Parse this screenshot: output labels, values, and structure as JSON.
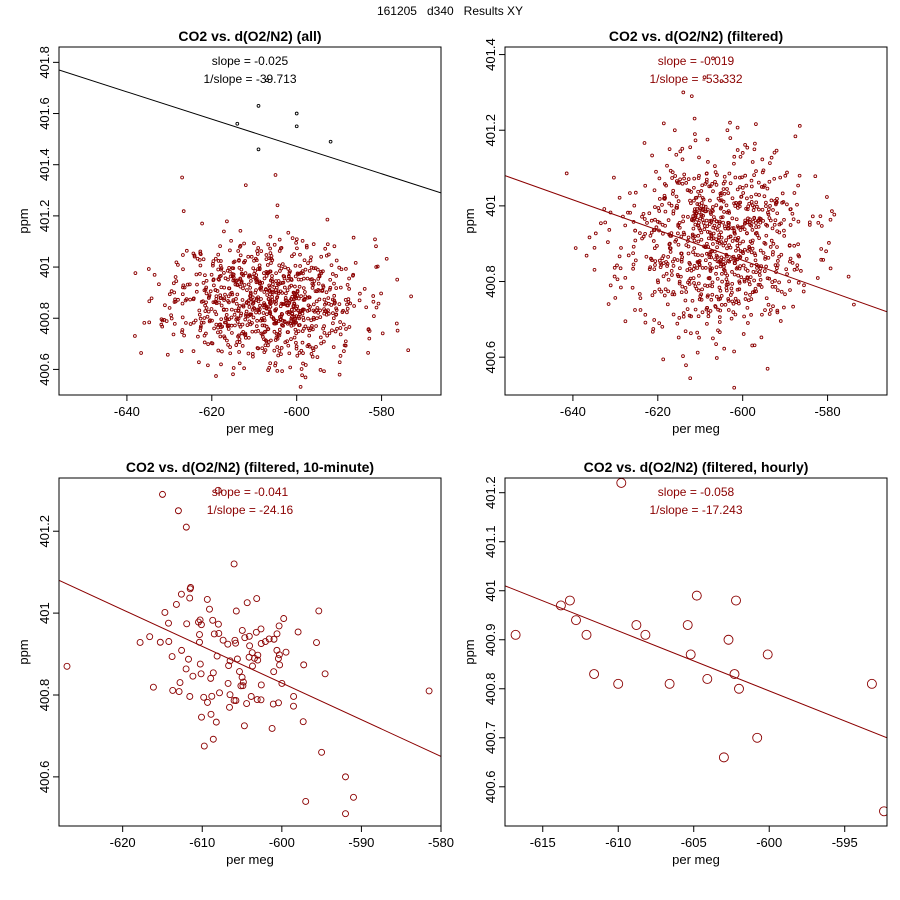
{
  "header": {
    "title": "161205   d340   Results XY"
  },
  "colors": {
    "darkred": "#8b0000",
    "black": "#000000"
  },
  "chart_data": [
    {
      "type": "scatter",
      "title": "CO2 vs. d(O2/N2) (all)",
      "xlabel": "per meg",
      "ylabel": "ppm",
      "xlim": [
        -656,
        -566
      ],
      "ylim": [
        400.5,
        401.86
      ],
      "xticks": [
        -640,
        -620,
        -600,
        -580
      ],
      "yticks": [
        400.6,
        400.8,
        401.0,
        401.2,
        401.4,
        401.6,
        401.8
      ],
      "annotations": [
        "slope = -0.025",
        "1/slope = -39.713"
      ],
      "annotation_color": "#000000",
      "line": {
        "x": [
          -656,
          -566
        ],
        "y": [
          401.77,
          401.29
        ],
        "color": "#000000"
      },
      "point_color": "#8b0000",
      "point_radius": 1.4,
      "cloud": {
        "n": 900,
        "cx": -607,
        "cy": 400.87,
        "sx": 11,
        "sy": 0.12,
        "seed": 11,
        "xmin": -654,
        "xmax": -568,
        "ymin": 400.51,
        "ymax": 401.3
      },
      "points": [
        {
          "x": -607,
          "y": 401.73,
          "c": "#000000"
        },
        {
          "x": -609,
          "y": 401.63,
          "c": "#000000"
        },
        {
          "x": -614,
          "y": 401.56,
          "c": "#000000"
        },
        {
          "x": -600,
          "y": 401.6,
          "c": "#000000"
        },
        {
          "x": -600,
          "y": 401.55,
          "c": "#000000"
        },
        {
          "x": -609,
          "y": 401.46,
          "c": "#000000"
        },
        {
          "x": -592,
          "y": 401.49,
          "c": "#000000"
        },
        {
          "x": -627,
          "y": 401.35
        },
        {
          "x": -605,
          "y": 401.36
        },
        {
          "x": -612,
          "y": 401.32
        }
      ]
    },
    {
      "type": "scatter",
      "title": "CO2 vs. d(O2/N2) (filtered)",
      "xlabel": "per meg",
      "ylabel": "ppm",
      "xlim": [
        -656,
        -566
      ],
      "ylim": [
        400.5,
        401.42
      ],
      "xticks": [
        -640,
        -620,
        -600,
        -580
      ],
      "yticks": [
        400.6,
        400.8,
        401.0,
        401.2,
        401.4
      ],
      "annotations": [
        "slope = -0.019",
        "1/slope = -53.332"
      ],
      "annotation_color": "#8b0000",
      "line": {
        "x": [
          -656,
          -566
        ],
        "y": [
          401.08,
          400.72
        ],
        "color": "#8b0000"
      },
      "point_color": "#8b0000",
      "point_radius": 1.4,
      "cloud": {
        "n": 900,
        "cx": -607,
        "cy": 400.9,
        "sx": 11,
        "sy": 0.12,
        "seed": 23,
        "xmin": -654,
        "xmax": -568,
        "ymin": 400.51,
        "ymax": 401.25
      },
      "points": [
        {
          "x": -607,
          "y": 401.39
        },
        {
          "x": -609,
          "y": 401.34
        },
        {
          "x": -605,
          "y": 401.33
        },
        {
          "x": -614,
          "y": 401.3
        },
        {
          "x": -612,
          "y": 401.29
        },
        {
          "x": -603,
          "y": 401.22
        },
        {
          "x": -616,
          "y": 401.2
        },
        {
          "x": -600,
          "y": 401.14
        }
      ]
    },
    {
      "type": "scatter",
      "title": "CO2 vs. d(O2/N2) (filtered, 10-minute)",
      "xlabel": "per meg",
      "ylabel": "ppm",
      "xlim": [
        -628,
        -580
      ],
      "ylim": [
        400.48,
        401.33
      ],
      "xticks": [
        -620,
        -610,
        -600,
        -590,
        -580
      ],
      "yticks": [
        400.6,
        400.8,
        401.0,
        401.2
      ],
      "annotations": [
        "slope = -0.041",
        "1/slope = -24.16"
      ],
      "annotation_color": "#8b0000",
      "line": {
        "x": [
          -628,
          -580
        ],
        "y": [
          401.08,
          400.65
        ],
        "color": "#8b0000"
      },
      "point_color": "#8b0000",
      "point_radius": 3,
      "cloud": {
        "n": 110,
        "cx": -606,
        "cy": 400.89,
        "sx": 5,
        "sy": 0.09,
        "seed": 37,
        "xmin": -626,
        "xmax": -585,
        "ymin": 400.6,
        "ymax": 401.1
      },
      "points": [
        {
          "x": -615,
          "y": 401.29
        },
        {
          "x": -613,
          "y": 401.25
        },
        {
          "x": -612,
          "y": 401.21
        },
        {
          "x": -608,
          "y": 401.3
        },
        {
          "x": -606,
          "y": 401.12
        },
        {
          "x": -581.5,
          "y": 400.81
        },
        {
          "x": -627,
          "y": 400.87
        },
        {
          "x": -592,
          "y": 400.51
        },
        {
          "x": -591,
          "y": 400.55
        },
        {
          "x": -597,
          "y": 400.54
        },
        {
          "x": -592,
          "y": 400.6
        },
        {
          "x": -595,
          "y": 400.66
        }
      ]
    },
    {
      "type": "scatter",
      "title": "CO2 vs. d(O2/N2) (filtered, hourly)",
      "xlabel": "per meg",
      "ylabel": "ppm",
      "xlim": [
        -617.5,
        -592.2
      ],
      "ylim": [
        400.52,
        401.23
      ],
      "xticks": [
        -615,
        -610,
        -605,
        -600,
        -595
      ],
      "yticks": [
        400.6,
        400.7,
        400.8,
        400.9,
        401.0,
        401.1,
        401.2
      ],
      "annotations": [
        "slope = -0.058",
        "1/slope = -17.243"
      ],
      "annotation_color": "#8b0000",
      "line": {
        "x": [
          -617.5,
          -592.2
        ],
        "y": [
          401.01,
          400.7
        ],
        "color": "#8b0000"
      },
      "point_color": "#8b0000",
      "point_radius": 4.5,
      "points": [
        {
          "x": -616.8,
          "y": 400.91
        },
        {
          "x": -613.8,
          "y": 400.97
        },
        {
          "x": -613.2,
          "y": 400.98
        },
        {
          "x": -612.8,
          "y": 400.94
        },
        {
          "x": -612.1,
          "y": 400.91
        },
        {
          "x": -611.6,
          "y": 400.83
        },
        {
          "x": -610,
          "y": 400.81
        },
        {
          "x": -609.8,
          "y": 401.22
        },
        {
          "x": -608.8,
          "y": 400.93
        },
        {
          "x": -608.2,
          "y": 400.91
        },
        {
          "x": -606.6,
          "y": 400.81
        },
        {
          "x": -605.4,
          "y": 400.93
        },
        {
          "x": -605.2,
          "y": 400.87
        },
        {
          "x": -604.8,
          "y": 400.99
        },
        {
          "x": -604.1,
          "y": 400.82
        },
        {
          "x": -603,
          "y": 400.66
        },
        {
          "x": -602.7,
          "y": 400.9
        },
        {
          "x": -602.3,
          "y": 400.83
        },
        {
          "x": -602.2,
          "y": 400.98
        },
        {
          "x": -602,
          "y": 400.8
        },
        {
          "x": -600.8,
          "y": 400.7
        },
        {
          "x": -600.1,
          "y": 400.87
        },
        {
          "x": -593.2,
          "y": 400.81
        },
        {
          "x": -592.4,
          "y": 400.55
        }
      ]
    }
  ]
}
